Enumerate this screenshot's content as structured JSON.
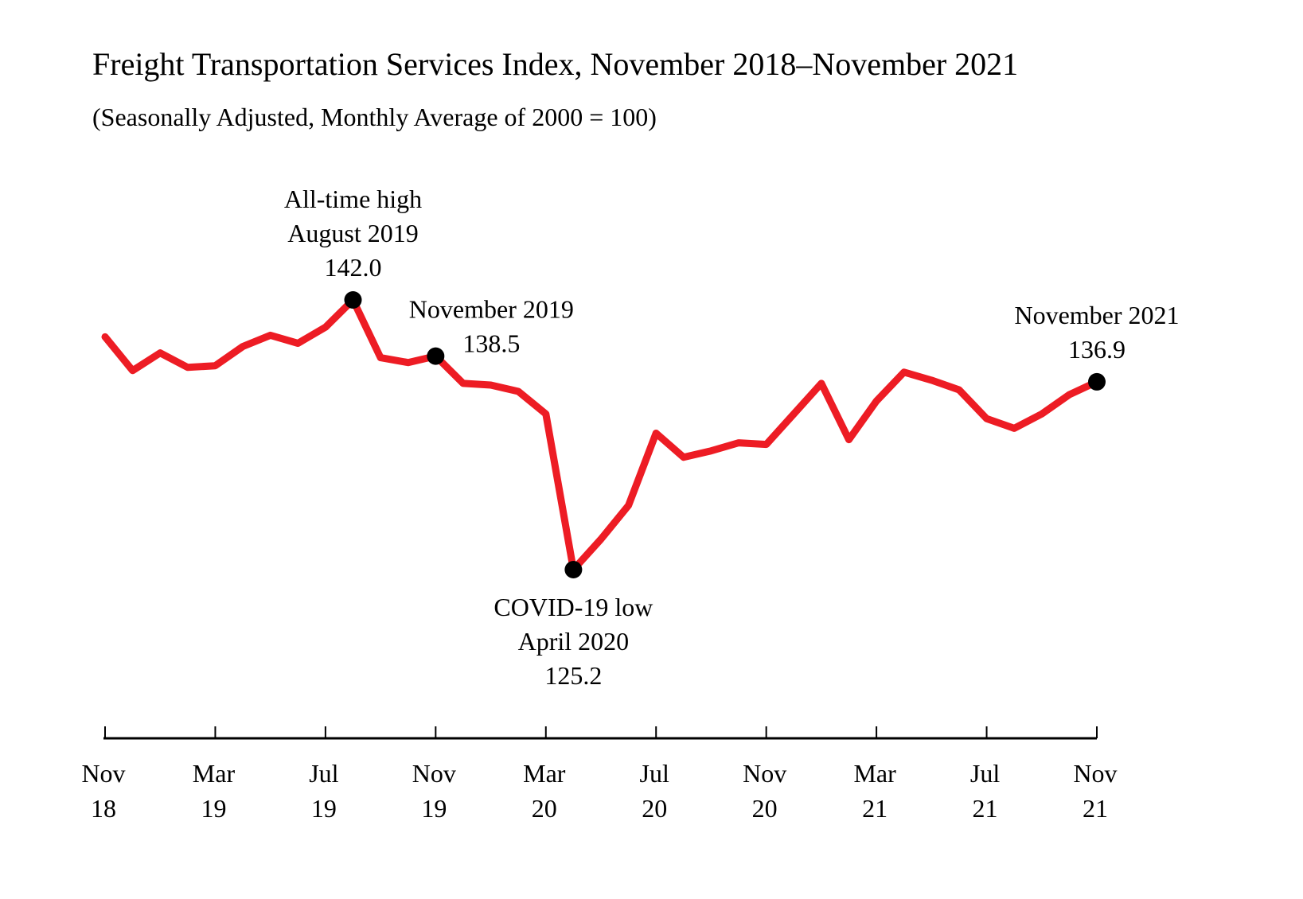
{
  "chart_data": {
    "type": "line",
    "title": "Freight Transportation Services Index, November 2018–November 2021",
    "subtitle": "(Seasonally Adjusted, Monthly Average of 2000 = 100)",
    "xlabel": "",
    "ylabel": "",
    "grid": false,
    "line_color": "#ED1C24",
    "marker_color": "#000000",
    "x": [
      "2018-11",
      "2018-12",
      "2019-01",
      "2019-02",
      "2019-03",
      "2019-04",
      "2019-05",
      "2019-06",
      "2019-07",
      "2019-08",
      "2019-09",
      "2019-10",
      "2019-11",
      "2019-12",
      "2020-01",
      "2020-02",
      "2020-03",
      "2020-04",
      "2020-05",
      "2020-06",
      "2020-07",
      "2020-08",
      "2020-09",
      "2020-10",
      "2020-11",
      "2020-12",
      "2021-01",
      "2021-02",
      "2021-03",
      "2021-04",
      "2021-05",
      "2021-06",
      "2021-07",
      "2021-08",
      "2021-09",
      "2021-10",
      "2021-11"
    ],
    "values": [
      139.7,
      137.6,
      138.7,
      137.8,
      137.9,
      139.1,
      139.8,
      139.3,
      140.3,
      142.0,
      138.4,
      138.1,
      138.5,
      136.8,
      136.7,
      136.3,
      134.9,
      125.2,
      127.1,
      129.2,
      133.7,
      132.2,
      132.6,
      133.1,
      133.0,
      134.9,
      136.8,
      133.3,
      135.7,
      137.5,
      137.0,
      136.4,
      134.6,
      134.0,
      134.9,
      136.1,
      136.9
    ],
    "x_ticks": [
      {
        "month": "Nov",
        "year": "18",
        "x": "2018-11"
      },
      {
        "month": "Mar",
        "year": "19",
        "x": "2019-03"
      },
      {
        "month": "Jul",
        "year": "19",
        "x": "2019-07"
      },
      {
        "month": "Nov",
        "year": "19",
        "x": "2019-11"
      },
      {
        "month": "Mar",
        "year": "20",
        "x": "2020-03"
      },
      {
        "month": "Jul",
        "year": "20",
        "x": "2020-07"
      },
      {
        "month": "Nov",
        "year": "20",
        "x": "2020-11"
      },
      {
        "month": "Mar",
        "year": "21",
        "x": "2021-03"
      },
      {
        "month": "Jul",
        "year": "21",
        "x": "2021-07"
      },
      {
        "month": "Nov",
        "year": "21",
        "x": "2021-11"
      }
    ],
    "annotations": [
      {
        "x": "2019-08",
        "lines": [
          "All-time high",
          "August 2019",
          "142.0"
        ],
        "position": "above"
      },
      {
        "x": "2019-11",
        "lines": [
          "November 2019",
          "138.5"
        ],
        "position": "above-right"
      },
      {
        "x": "2020-04",
        "lines": [
          "COVID-19 low",
          "April 2020",
          "125.2"
        ],
        "position": "below"
      },
      {
        "x": "2021-11",
        "lines": [
          "November 2021",
          "136.9"
        ],
        "position": "above"
      }
    ]
  }
}
